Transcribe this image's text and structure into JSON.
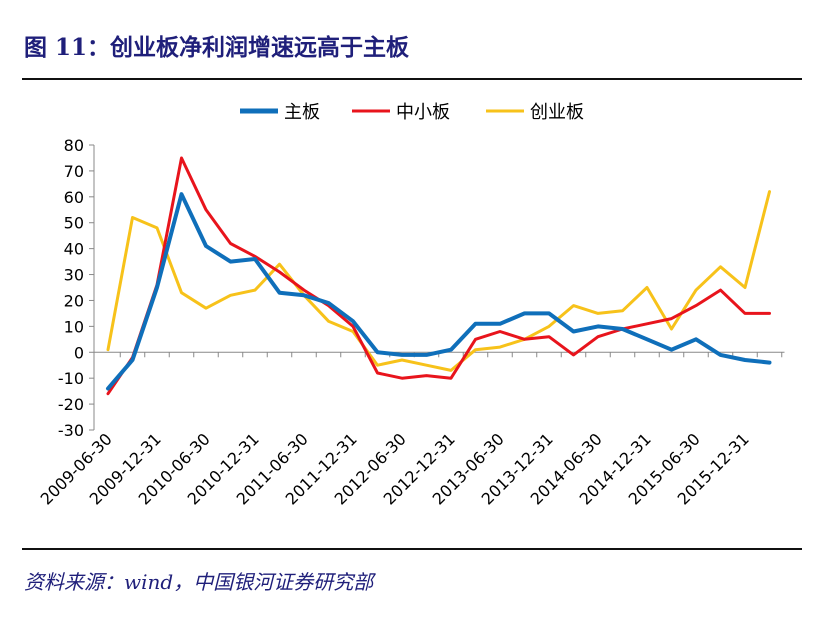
{
  "figure": {
    "title": "图 11：创业板净利润增速远高于主板",
    "source": "资料来源：wind，中国银河证券研究部"
  },
  "chart_data": {
    "type": "line",
    "title": "",
    "xlabel": "",
    "ylabel": "",
    "ylim": [
      -30,
      80
    ],
    "yticks": [
      -30,
      -20,
      -10,
      0,
      10,
      20,
      30,
      40,
      50,
      60,
      70,
      80
    ],
    "grid": false,
    "legend_position": "top-center",
    "x": [
      "2009-06-30",
      "2009-09-30",
      "2009-12-31",
      "2010-03-31",
      "2010-06-30",
      "2010-09-30",
      "2010-12-31",
      "2011-03-31",
      "2011-06-30",
      "2011-09-30",
      "2011-12-31",
      "2012-03-31",
      "2012-06-30",
      "2012-09-30",
      "2012-12-31",
      "2013-03-31",
      "2013-06-30",
      "2013-09-30",
      "2013-12-31",
      "2014-03-31",
      "2014-06-30",
      "2014-09-30",
      "2014-12-31",
      "2015-03-31",
      "2015-06-30",
      "2015-09-30",
      "2015-12-31",
      "2016-03-31"
    ],
    "x_tick_labels": [
      "2009-06-30",
      "2009-12-31",
      "2010-06-30",
      "2010-12-31",
      "2011-06-30",
      "2011-12-31",
      "2012-06-30",
      "2012-12-31",
      "2013-06-30",
      "2013-12-31",
      "2014-06-30",
      "2014-12-31",
      "2015-06-30",
      "2015-12-31"
    ],
    "series": [
      {
        "name": "主板",
        "color": "#0f6fba",
        "values": [
          -14,
          -3,
          25,
          61,
          41,
          35,
          36,
          23,
          22,
          19,
          12,
          0,
          -1,
          -1,
          1,
          11,
          11,
          15,
          15,
          8,
          10,
          9,
          5,
          1,
          5,
          -1,
          -3,
          -4
        ]
      },
      {
        "name": "中小板",
        "color": "#e8141c",
        "values": [
          -16,
          -2,
          26,
          75,
          55,
          42,
          37,
          31,
          24,
          18,
          10,
          -8,
          -10,
          -9,
          -10,
          5,
          8,
          5,
          6,
          -1,
          6,
          9,
          11,
          13,
          18,
          24,
          15,
          15
        ]
      },
      {
        "name": "创业板",
        "color": "#f7c21a",
        "values": [
          1,
          52,
          48,
          23,
          17,
          22,
          24,
          34,
          22,
          12,
          8,
          -5,
          -3,
          -5,
          -7,
          1,
          2,
          5,
          10,
          18,
          15,
          16,
          25,
          9,
          24,
          33,
          25,
          62
        ]
      }
    ]
  }
}
